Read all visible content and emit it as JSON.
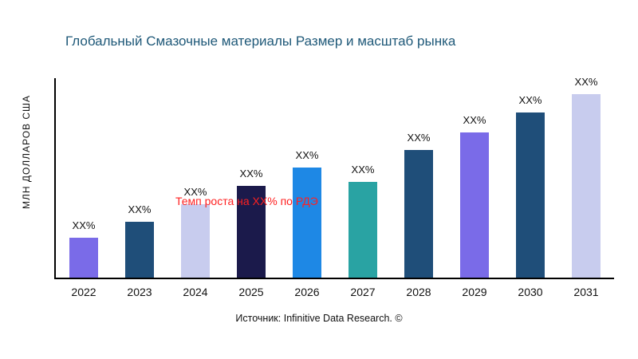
{
  "title": "Глобальный Смазочные материалы Размер и масштаб рынка",
  "y_axis_label": "МЛН ДОЛЛАРОВ США",
  "growth_note": "Темп роста на XX% по РДЭ",
  "source": "Источник: Infinitive Data Research. ©",
  "colors": {
    "title": "#1E5878",
    "annotation": "#FF2020",
    "axis": "#000000",
    "background": "#FFFFFF"
  },
  "chart_data": {
    "type": "bar",
    "title": "Глобальный Смазочные материалы Размер и масштаб рынка",
    "xlabel": "",
    "ylabel": "МЛН ДОЛЛАРОВ США",
    "categories": [
      "2022",
      "2023",
      "2024",
      "2025",
      "2026",
      "2027",
      "2028",
      "2029",
      "2030",
      "2031"
    ],
    "values": [
      50,
      70,
      92,
      115,
      138,
      120,
      160,
      182,
      207,
      230
    ],
    "value_note": "relative bar heights in px; numeric values not shown in chart, all data labels read XX%",
    "data_labels": [
      "XX%",
      "XX%",
      "XX%",
      "XX%",
      "XX%",
      "XX%",
      "XX%",
      "XX%",
      "XX%",
      "XX%"
    ],
    "bar_colors": [
      "#7A6BE8",
      "#1F4E79",
      "#C8CCEE",
      "#1B1A4B",
      "#1E88E5",
      "#29A3A3",
      "#1F4E79",
      "#7A6BE8",
      "#1F4E79",
      "#C8CCEE"
    ],
    "ylim": [
      0,
      250
    ],
    "grid": false,
    "legend": false,
    "annotation": "Темп роста на XX% по РДЭ"
  }
}
